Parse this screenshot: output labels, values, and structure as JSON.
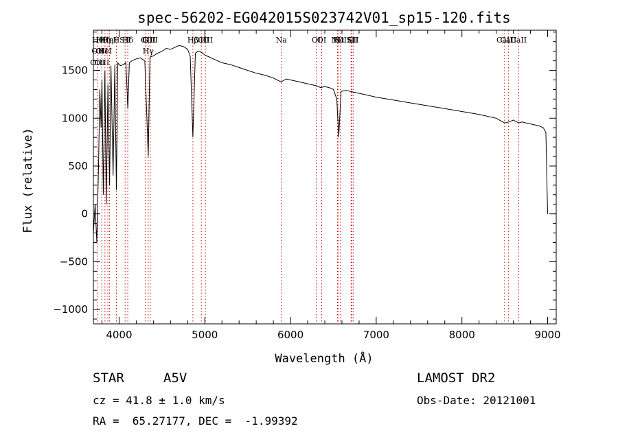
{
  "chart_data": {
    "type": "line",
    "title": "spec-56202-EG042015S023742V01_sp15-120.fits",
    "xlabel": "Wavelength (Å)",
    "ylabel": "Flux (relative)",
    "xlim": [
      3700,
      9100
    ],
    "ylim": [
      -1150,
      1920
    ],
    "xticks": [
      4000,
      5000,
      6000,
      7000,
      8000,
      9000
    ],
    "yticks": [
      -1000,
      -500,
      0,
      500,
      1000,
      1500
    ],
    "grid": false,
    "series": [
      {
        "x": [
          3700,
          3720,
          3740,
          3760,
          3775,
          3790,
          3800,
          3815,
          3835,
          3850,
          3870,
          3889,
          3905,
          3930,
          3950,
          3968,
          3985,
          4000,
          4020,
          4050,
          4080,
          4101,
          4120,
          4150,
          4200,
          4250,
          4300,
          4340,
          4360,
          4400,
          4450,
          4500,
          4550,
          4600,
          4650,
          4700,
          4750,
          4800,
          4830,
          4861,
          4890,
          4920,
          4960,
          5000,
          5050,
          5100,
          5200,
          5300,
          5400,
          5500,
          5600,
          5700,
          5800,
          5890,
          5950,
          6000,
          6100,
          6200,
          6300,
          6350,
          6400,
          6450,
          6500,
          6540,
          6563,
          6590,
          6650,
          6700,
          6800,
          6900,
          7000,
          7200,
          7400,
          7600,
          7800,
          8000,
          8200,
          8400,
          8498,
          8542,
          8600,
          8662,
          8700,
          8800,
          8900,
          8950,
          8980,
          8990,
          9000
        ],
        "values": [
          -200,
          100,
          -300,
          500,
          1300,
          900,
          1400,
          200,
          1500,
          100,
          1350,
          300,
          1550,
          400,
          1560,
          250,
          1580,
          1560,
          1550,
          1560,
          1580,
          1100,
          1580,
          1600,
          1620,
          1630,
          1600,
          600,
          1640,
          1650,
          1680,
          1700,
          1730,
          1720,
          1740,
          1760,
          1750,
          1720,
          1650,
          800,
          1680,
          1700,
          1690,
          1660,
          1640,
          1620,
          1580,
          1560,
          1530,
          1500,
          1470,
          1450,
          1420,
          1380,
          1410,
          1400,
          1380,
          1360,
          1340,
          1320,
          1330,
          1320,
          1300,
          1200,
          800,
          1280,
          1290,
          1280,
          1260,
          1240,
          1220,
          1190,
          1160,
          1130,
          1100,
          1070,
          1040,
          1000,
          950,
          960,
          980,
          950,
          960,
          940,
          920,
          900,
          850,
          400,
          0
        ]
      }
    ],
    "lines": [
      {
        "x": 3750,
        "labels": [
          "Hθ",
          "OII",
          "OIII"
        ]
      },
      {
        "x": 3798,
        "labels": [
          "Hθ",
          "OII",
          "OIII"
        ]
      },
      {
        "x": 3835,
        "labels": [
          "Hη",
          "HeI"
        ]
      },
      {
        "x": 3869,
        "labels": [
          "Hη"
        ]
      },
      {
        "x": 3889,
        "labels": [
          "HeI"
        ]
      },
      {
        "x": 3968,
        "labels": [
          "H"
        ]
      },
      {
        "x": 4070,
        "labels": [
          "SII"
        ]
      },
      {
        "x": 4101,
        "labels": [
          "Hδ"
        ]
      },
      {
        "x": 4304,
        "labels": [
          "G"
        ]
      },
      {
        "x": 4340,
        "labels": [
          "OIII",
          "Hγ"
        ]
      },
      {
        "x": 4363,
        "labels": [
          "OIII"
        ]
      },
      {
        "x": 4861,
        "labels": [
          "Hβ"
        ]
      },
      {
        "x": 4959,
        "labels": [
          "OIII"
        ]
      },
      {
        "x": 5007,
        "labels": [
          "OIII"
        ]
      },
      {
        "x": 5893,
        "labels": [
          "Na"
        ]
      },
      {
        "x": 6300,
        "labels": [
          "OI"
        ]
      },
      {
        "x": 6364,
        "labels": [
          "OI"
        ]
      },
      {
        "x": 6548,
        "labels": [
          "NII"
        ]
      },
      {
        "x": 6563,
        "labels": [
          "Hα"
        ]
      },
      {
        "x": 6583,
        "labels": [
          "NII"
        ]
      },
      {
        "x": 6707,
        "labels": [
          "Li"
        ]
      },
      {
        "x": 6716,
        "labels": [
          "SII"
        ]
      },
      {
        "x": 6731,
        "labels": [
          "SII"
        ]
      },
      {
        "x": 8498,
        "labels": [
          "CaII"
        ]
      },
      {
        "x": 8542,
        "labels": [
          "CaII"
        ]
      },
      {
        "x": 8662,
        "labels": [
          "CaII"
        ]
      }
    ],
    "line_color": "#cc0000",
    "spectrum_color": "#000000"
  },
  "info": {
    "object_class": "STAR",
    "subclass": "A5V",
    "survey": "LAMOST DR2",
    "cz": "cz = 41.8 ± 1.0 km/s",
    "obs_date": "Obs-Date: 20121001",
    "coords": "RA =  65.27177, DEC =  -1.99392"
  }
}
